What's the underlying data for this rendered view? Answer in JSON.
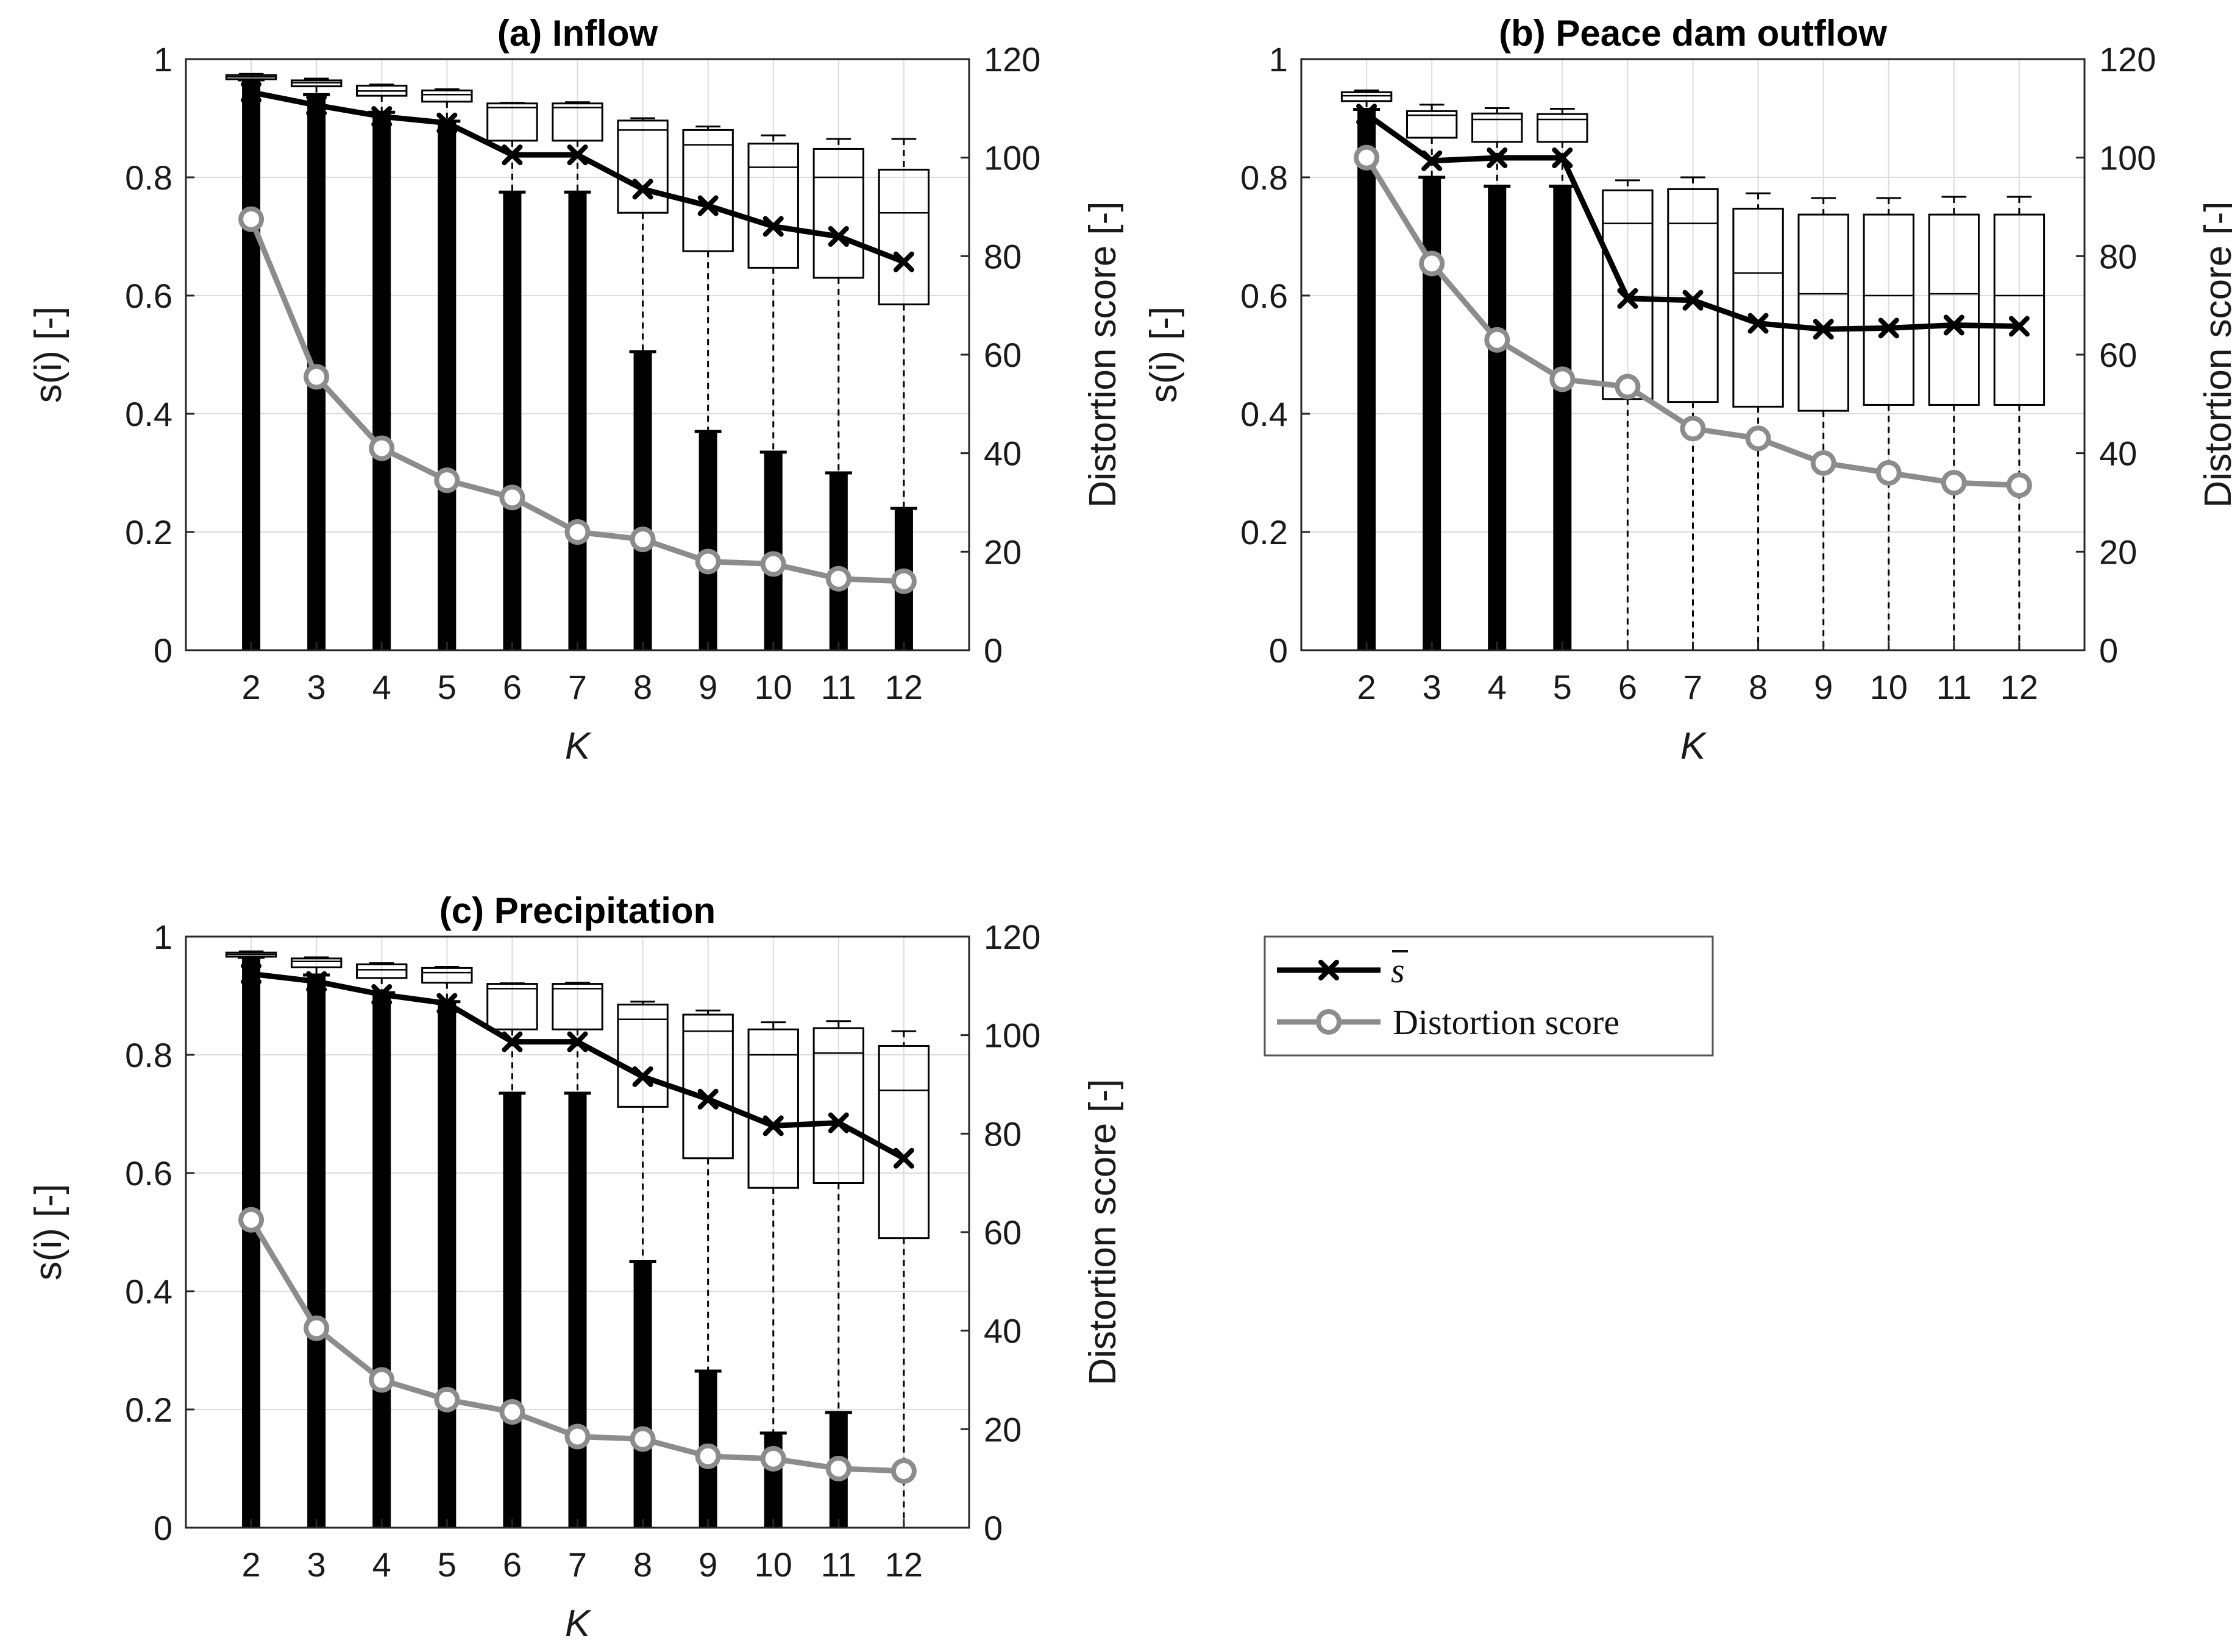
{
  "legend": {
    "mean_label": "s",
    "distortion_label": "Distortion score"
  },
  "chart_data": [
    {
      "id": "a",
      "type": "box+line",
      "title": "(a) Inflow",
      "xlabel": "K",
      "ylabel_left": "s(i) [-]",
      "ylabel_right": "Distortion score [-]",
      "categories": [
        2,
        3,
        4,
        5,
        6,
        7,
        8,
        9,
        10,
        11,
        12
      ],
      "ylim_left": [
        0,
        1
      ],
      "ylim_right": [
        0,
        120
      ],
      "yticks_left": [
        0,
        0.2,
        0.4,
        0.6,
        0.8,
        1
      ],
      "yticks_right": [
        0,
        20,
        40,
        60,
        80,
        100,
        120
      ],
      "grid": true,
      "boxes": [
        {
          "k": 2,
          "q1": 0.966,
          "median": 0.97,
          "q3": 0.973,
          "whisker_high": 0.975
        },
        {
          "k": 3,
          "q1": 0.954,
          "median": 0.96,
          "q3": 0.964,
          "whisker_high": 0.967
        },
        {
          "k": 4,
          "q1": 0.938,
          "median": 0.946,
          "q3": 0.955,
          "whisker_high": 0.957
        },
        {
          "k": 5,
          "q1": 0.928,
          "median": 0.94,
          "q3": 0.947,
          "whisker_high": 0.949
        },
        {
          "k": 6,
          "q1": 0.862,
          "median": 0.918,
          "q3": 0.925,
          "whisker_high": 0.926
        },
        {
          "k": 7,
          "q1": 0.862,
          "median": 0.918,
          "q3": 0.925,
          "whisker_high": 0.927
        },
        {
          "k": 8,
          "q1": 0.74,
          "median": 0.88,
          "q3": 0.896,
          "whisker_high": 0.9
        },
        {
          "k": 9,
          "q1": 0.675,
          "median": 0.855,
          "q3": 0.88,
          "whisker_high": 0.886
        },
        {
          "k": 10,
          "q1": 0.647,
          "median": 0.817,
          "q3": 0.857,
          "whisker_high": 0.871
        },
        {
          "k": 11,
          "q1": 0.63,
          "median": 0.8,
          "q3": 0.848,
          "whisker_high": 0.865
        },
        {
          "k": 12,
          "q1": 0.585,
          "median": 0.74,
          "q3": 0.813,
          "whisker_high": 0.865
        }
      ],
      "outlier_top": [
        0.965,
        0.94,
        0.91,
        0.895,
        0.775,
        0.775,
        0.505,
        0.37,
        0.335,
        0.3,
        0.24
      ],
      "series": [
        {
          "name": "s_mean",
          "axis": "left",
          "values": [
            0.944,
            0.922,
            0.903,
            0.892,
            0.838,
            0.838,
            0.78,
            0.752,
            0.717,
            0.7,
            0.657
          ]
        },
        {
          "name": "Distortion score",
          "axis": "right",
          "values": [
            87.5,
            55.5,
            41.0,
            34.5,
            31.0,
            24.0,
            22.5,
            18.0,
            17.5,
            14.5,
            14.0
          ]
        }
      ]
    },
    {
      "id": "b",
      "type": "box+line",
      "title": "(b) Peace dam outflow",
      "xlabel": "K",
      "ylabel_left": "s(i) [-]",
      "ylabel_right": "Distortion score [-]",
      "categories": [
        2,
        3,
        4,
        5,
        6,
        7,
        8,
        9,
        10,
        11,
        12
      ],
      "ylim_left": [
        0,
        1
      ],
      "ylim_right": [
        0,
        120
      ],
      "yticks_left": [
        0,
        0.2,
        0.4,
        0.6,
        0.8,
        1
      ],
      "yticks_right": [
        0,
        20,
        40,
        60,
        80,
        100,
        120
      ],
      "grid": true,
      "boxes": [
        {
          "k": 2,
          "q1": 0.929,
          "median": 0.938,
          "q3": 0.944,
          "whisker_high": 0.947
        },
        {
          "k": 3,
          "q1": 0.867,
          "median": 0.905,
          "q3": 0.912,
          "whisker_high": 0.923
        },
        {
          "k": 4,
          "q1": 0.86,
          "median": 0.898,
          "q3": 0.908,
          "whisker_high": 0.917
        },
        {
          "k": 5,
          "q1": 0.86,
          "median": 0.898,
          "q3": 0.907,
          "whisker_high": 0.916
        },
        {
          "k": 6,
          "q1": 0.425,
          "median": 0.722,
          "q3": 0.778,
          "whisker_high": 0.795
        },
        {
          "k": 7,
          "q1": 0.42,
          "median": 0.722,
          "q3": 0.78,
          "whisker_high": 0.8
        },
        {
          "k": 8,
          "q1": 0.412,
          "median": 0.638,
          "q3": 0.747,
          "whisker_high": 0.773
        },
        {
          "k": 9,
          "q1": 0.405,
          "median": 0.603,
          "q3": 0.737,
          "whisker_high": 0.765
        },
        {
          "k": 10,
          "q1": 0.415,
          "median": 0.6,
          "q3": 0.737,
          "whisker_high": 0.765
        },
        {
          "k": 11,
          "q1": 0.415,
          "median": 0.603,
          "q3": 0.737,
          "whisker_high": 0.767
        },
        {
          "k": 12,
          "q1": 0.415,
          "median": 0.6,
          "q3": 0.737,
          "whisker_high": 0.767
        }
      ],
      "outlier_top": [
        0.915,
        0.8,
        0.785,
        0.785,
        null,
        null,
        null,
        null,
        null,
        null,
        null
      ],
      "series": [
        {
          "name": "s_mean",
          "axis": "left",
          "values": [
            0.907,
            0.828,
            0.833,
            0.833,
            0.595,
            0.592,
            0.553,
            0.543,
            0.545,
            0.55,
            0.548
          ]
        },
        {
          "name": "Distortion score",
          "axis": "right",
          "values": [
            100.0,
            78.5,
            63.0,
            55.0,
            53.5,
            45.0,
            43.0,
            38.0,
            36.0,
            34.0,
            33.5
          ]
        }
      ]
    },
    {
      "id": "c",
      "type": "box+line",
      "title": "(c) Precipitation",
      "xlabel": "K",
      "ylabel_left": "s(i) [-]",
      "ylabel_right": "Distortion score [-]",
      "categories": [
        2,
        3,
        4,
        5,
        6,
        7,
        8,
        9,
        10,
        11,
        12
      ],
      "ylim_left": [
        0,
        1
      ],
      "ylim_right": [
        0,
        120
      ],
      "yticks_left": [
        0,
        0.2,
        0.4,
        0.6,
        0.8,
        1
      ],
      "yticks_right": [
        0,
        20,
        40,
        60,
        80,
        100,
        120
      ],
      "grid": true,
      "boxes": [
        {
          "k": 2,
          "q1": 0.966,
          "median": 0.97,
          "q3": 0.973,
          "whisker_high": 0.975
        },
        {
          "k": 3,
          "q1": 0.948,
          "median": 0.958,
          "q3": 0.963,
          "whisker_high": 0.965
        },
        {
          "k": 4,
          "q1": 0.93,
          "median": 0.944,
          "q3": 0.953,
          "whisker_high": 0.955
        },
        {
          "k": 5,
          "q1": 0.922,
          "median": 0.939,
          "q3": 0.947,
          "whisker_high": 0.949
        },
        {
          "k": 6,
          "q1": 0.843,
          "median": 0.912,
          "q3": 0.92,
          "whisker_high": 0.921
        },
        {
          "k": 7,
          "q1": 0.843,
          "median": 0.912,
          "q3": 0.92,
          "whisker_high": 0.922
        },
        {
          "k": 8,
          "q1": 0.712,
          "median": 0.86,
          "q3": 0.885,
          "whisker_high": 0.89
        },
        {
          "k": 9,
          "q1": 0.625,
          "median": 0.84,
          "q3": 0.868,
          "whisker_high": 0.875
        },
        {
          "k": 10,
          "q1": 0.575,
          "median": 0.8,
          "q3": 0.843,
          "whisker_high": 0.855
        },
        {
          "k": 11,
          "q1": 0.583,
          "median": 0.803,
          "q3": 0.845,
          "whisker_high": 0.857
        },
        {
          "k": 12,
          "q1": 0.49,
          "median": 0.74,
          "q3": 0.815,
          "whisker_high": 0.84
        }
      ],
      "outlier_top": [
        0.965,
        0.935,
        0.905,
        0.89,
        0.735,
        0.735,
        0.45,
        0.265,
        0.16,
        0.195,
        null
      ],
      "series": [
        {
          "name": "s_mean",
          "axis": "left",
          "values": [
            0.937,
            0.924,
            0.902,
            0.887,
            0.822,
            0.822,
            0.763,
            0.725,
            0.68,
            0.685,
            0.625
          ]
        },
        {
          "name": "Distortion score",
          "axis": "right",
          "values": [
            62.5,
            40.5,
            30.0,
            26.0,
            23.5,
            18.5,
            18.0,
            14.5,
            14.0,
            12.0,
            11.5
          ]
        }
      ]
    }
  ]
}
